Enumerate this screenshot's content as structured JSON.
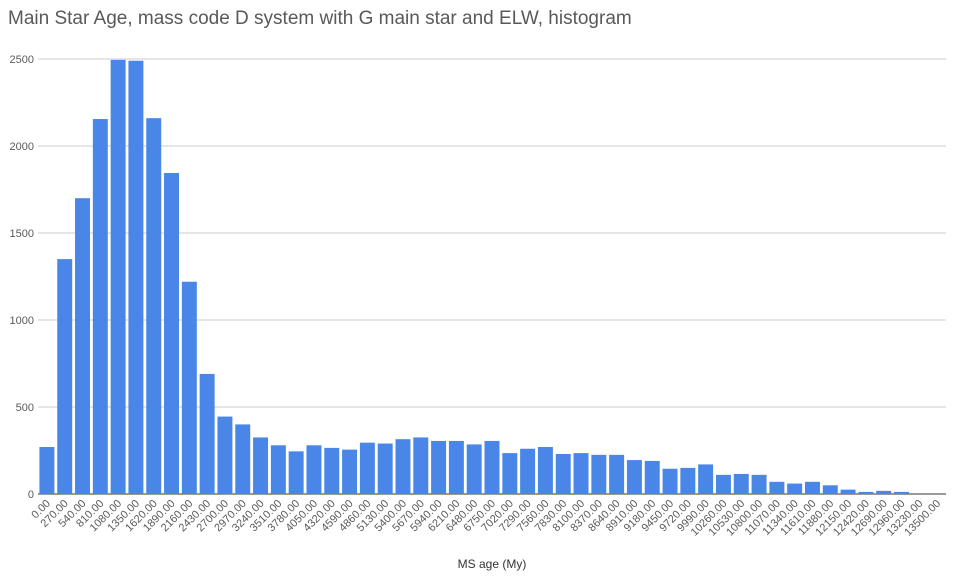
{
  "chart_data": {
    "type": "bar",
    "title": "Main Star Age, mass code D system with G main star and ELW, histogram",
    "xlabel": "MS age (My)",
    "ylabel": "",
    "ylim": [
      0,
      2500
    ],
    "yticks": [
      "0",
      "500",
      "1000",
      "1500",
      "2000",
      "2500"
    ],
    "grid": true,
    "bar_color": "#4a86e8",
    "categories": [
      "0.00",
      "270.00",
      "540.00",
      "810.00",
      "1080.00",
      "1350.00",
      "1620.00",
      "1890.00",
      "2160.00",
      "2430.00",
      "2700.00",
      "2970.00",
      "3240.00",
      "3510.00",
      "3780.00",
      "4050.00",
      "4320.00",
      "4590.00",
      "4860.00",
      "5130.00",
      "5400.00",
      "5670.00",
      "5940.00",
      "6210.00",
      "6480.00",
      "6750.00",
      "7020.00",
      "7290.00",
      "7560.00",
      "7830.00",
      "8100.00",
      "8370.00",
      "8640.00",
      "8910.00",
      "9180.00",
      "9450.00",
      "9720.00",
      "9990.00",
      "10260.00",
      "10530.00",
      "10800.00",
      "11070.00",
      "11340.00",
      "11610.00",
      "11880.00",
      "12150.00",
      "12420.00",
      "12690.00",
      "12960.00",
      "13230.00",
      "13500.00"
    ],
    "values": [
      270,
      1350,
      1700,
      2155,
      2495,
      2490,
      2160,
      1845,
      1220,
      690,
      445,
      400,
      325,
      280,
      245,
      280,
      265,
      255,
      295,
      290,
      315,
      325,
      305,
      305,
      285,
      305,
      235,
      260,
      270,
      230,
      235,
      225,
      225,
      195,
      190,
      145,
      150,
      170,
      110,
      115,
      110,
      70,
      60,
      70,
      50,
      25,
      12,
      18,
      12,
      0,
      0
    ]
  }
}
